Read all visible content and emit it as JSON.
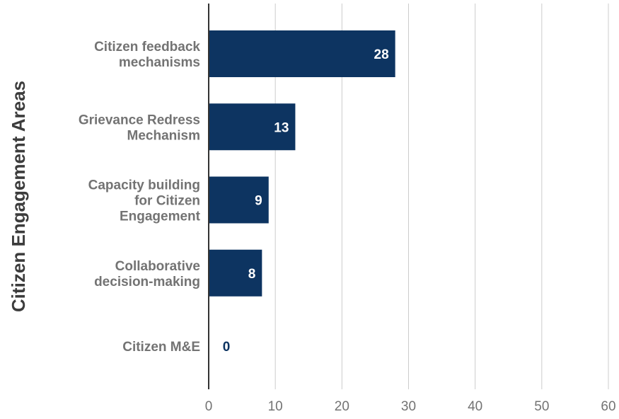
{
  "chart_data": {
    "type": "bar",
    "orientation": "horizontal",
    "title": "",
    "ylabel": "Citizen Engagement Areas",
    "xlabel": "",
    "categories": [
      [
        "Citizen feedback",
        "mechanisms"
      ],
      [
        "Grievance Redress",
        "Mechanism"
      ],
      [
        "Capacity building",
        "for Citizen",
        "Engagement"
      ],
      [
        "Collaborative",
        "decision-making"
      ],
      [
        "Citizen M&E"
      ]
    ],
    "values": [
      28,
      13,
      9,
      8,
      0
    ],
    "data_labels": [
      "28",
      "13",
      "9",
      "8",
      "0"
    ],
    "xlim": [
      0,
      60
    ],
    "xticks": [
      0,
      10,
      20,
      30,
      40,
      50,
      60
    ],
    "xtick_labels": [
      "0",
      "10",
      "20",
      "30",
      "40",
      "50",
      "60"
    ],
    "grid": true,
    "legend": "none",
    "colors": {
      "bar": "#0d3461",
      "label_inside": "#ffffff",
      "label_outside": "#0d3461",
      "grid": "#cccccc",
      "axis": "#333333",
      "category_text": "#737373",
      "tick_text": "#737373",
      "axis_title": "#3c3c3c"
    }
  }
}
